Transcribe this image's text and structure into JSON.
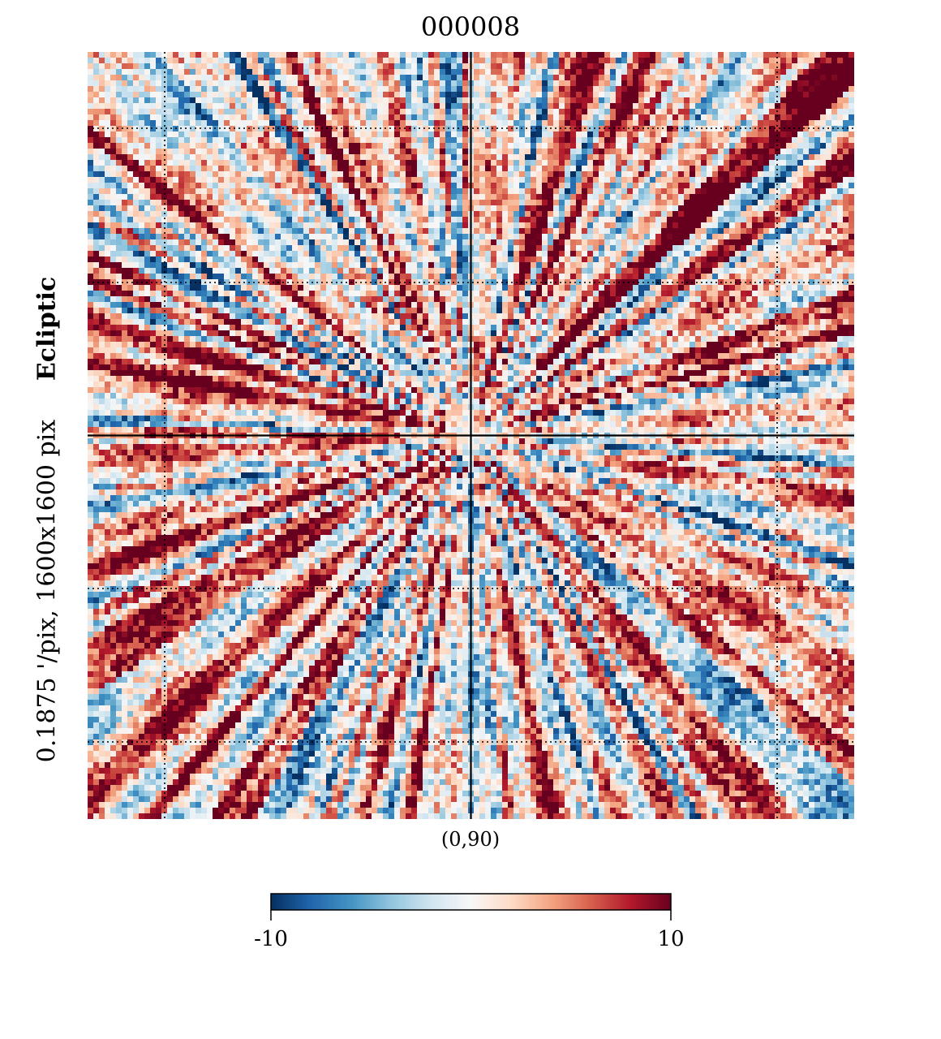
{
  "chart_data": {
    "type": "heatmap",
    "title": "000008",
    "side_label_plain": "0.1875 '/pix,   1600x1600 pix",
    "side_label_bold": "Ecliptic",
    "center_label": "(0,90)",
    "colorbar": {
      "min": -10,
      "max": 10,
      "min_label": "-10",
      "max_label": "10",
      "colormap": "RdBu_r",
      "colors": [
        "#053061",
        "#2166ac",
        "#4393c3",
        "#92c5de",
        "#d1e5f0",
        "#f7f7f7",
        "#fddbc7",
        "#f4a582",
        "#d6604d",
        "#b2182b",
        "#67001f"
      ]
    },
    "projection_center": [
      0,
      90
    ],
    "grid": true,
    "grid_style": "dotted",
    "axes_lines": true
  }
}
